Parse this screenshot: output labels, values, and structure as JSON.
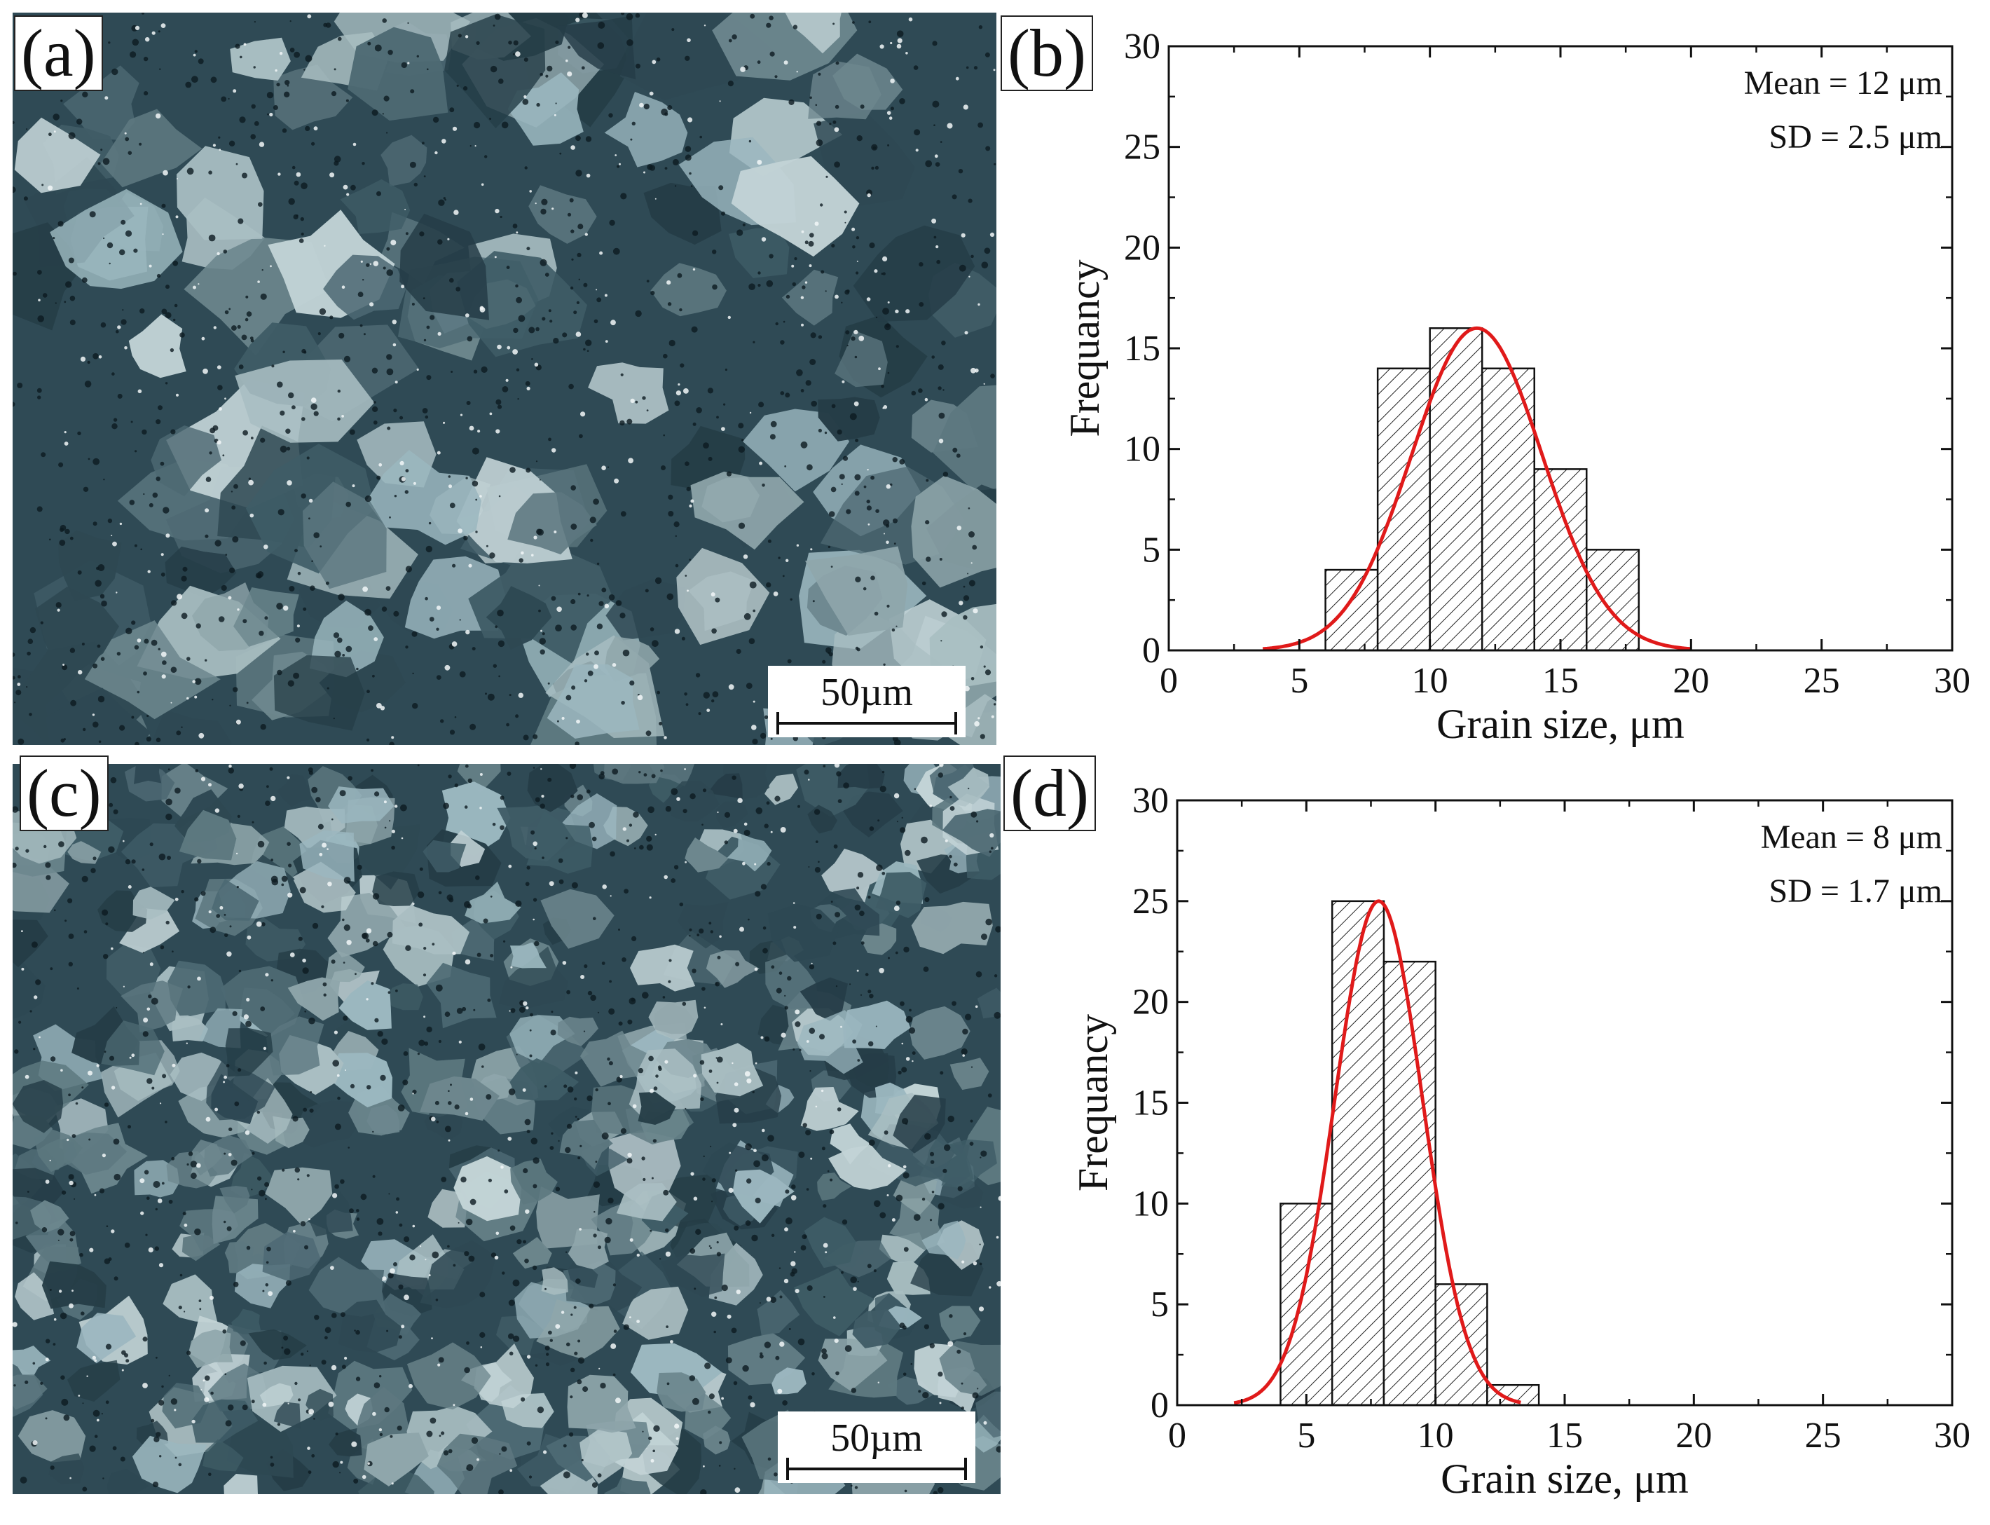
{
  "panels": {
    "a": {
      "label": "(a)",
      "scale_bar": "50µm"
    },
    "b": {
      "label": "(b)"
    },
    "c": {
      "label": "(c)",
      "scale_bar": "50µm"
    },
    "d": {
      "label": "(d)"
    }
  },
  "colors": {
    "fit_curve": "#e01a1a",
    "bar_hatch": "#222222",
    "micro_dark": "#2f4a55",
    "micro_light": "#b9cbd0"
  },
  "chart_data": [
    {
      "type": "bar",
      "panel": "b",
      "x": [
        7,
        9,
        11,
        13,
        15,
        17
      ],
      "bin_width": 2,
      "values": [
        4,
        14,
        16,
        14,
        9,
        5
      ],
      "fit": {
        "type": "normal",
        "mean": 11.8,
        "sd": 2.5,
        "peak": 16,
        "x_range": [
          3.6,
          20
        ]
      },
      "annotations": [
        "Mean = 12 μm",
        "SD = 2.5 μm"
      ],
      "xlabel": "Grain size, μm",
      "ylabel": "Frequancy",
      "xlim": [
        0,
        30
      ],
      "ylim": [
        0,
        30
      ],
      "xticks": [
        "0",
        "5",
        "10",
        "15",
        "20",
        "25",
        "30"
      ],
      "yticks": [
        "0",
        "5",
        "10",
        "15",
        "20",
        "25",
        "30"
      ]
    },
    {
      "type": "bar",
      "panel": "d",
      "x": [
        5,
        7,
        9,
        11,
        13
      ],
      "bin_width": 2,
      "values": [
        10,
        25,
        22,
        6,
        1
      ],
      "fit": {
        "type": "normal",
        "mean": 7.8,
        "sd": 1.7,
        "peak": 25,
        "x_range": [
          2.2,
          13.3
        ]
      },
      "annotations": [
        "Mean = 8 μm",
        "SD = 1.7 μm"
      ],
      "xlabel": "Grain size, μm",
      "ylabel": "Frequancy",
      "xlim": [
        0,
        30
      ],
      "ylim": [
        0,
        30
      ],
      "xticks": [
        "0",
        "5",
        "10",
        "15",
        "20",
        "25",
        "30"
      ],
      "yticks": [
        "0",
        "5",
        "10",
        "15",
        "20",
        "25",
        "30"
      ]
    }
  ]
}
